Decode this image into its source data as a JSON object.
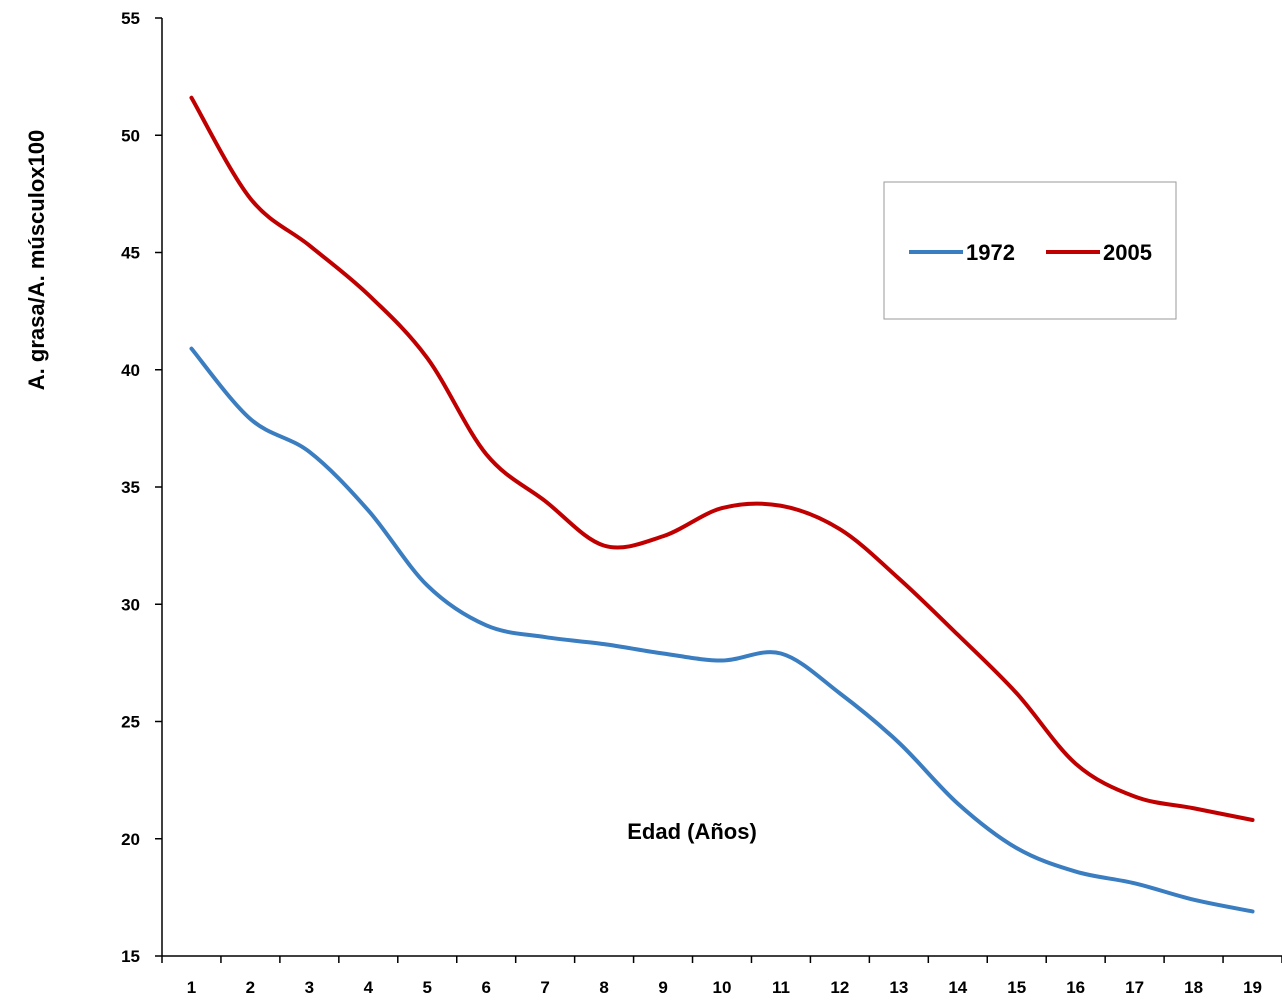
{
  "chart_data": {
    "type": "line",
    "title": "",
    "xlabel": "Edad (Años)",
    "ylabel": "A. grasa/A. músculox100",
    "categories": [
      "1",
      "2",
      "3",
      "4",
      "5",
      "6",
      "7",
      "8",
      "9",
      "10",
      "11",
      "12",
      "13",
      "14",
      "15",
      "16",
      "17",
      "18",
      "19"
    ],
    "ylim": [
      15,
      55
    ],
    "yticks": [
      15,
      20,
      25,
      30,
      35,
      40,
      45,
      50,
      55
    ],
    "grid": false,
    "legend_position": "top-right",
    "series": [
      {
        "name": "1972",
        "color": "#3a7dc0",
        "values": [
          40.9,
          37.9,
          36.5,
          34.0,
          30.8,
          29.1,
          28.6,
          28.3,
          27.9,
          27.6,
          27.9,
          26.2,
          24.1,
          21.5,
          19.6,
          18.6,
          18.1,
          17.4,
          16.9
        ]
      },
      {
        "name": "2005",
        "color": "#c00000",
        "values": [
          51.6,
          47.3,
          45.3,
          43.2,
          40.5,
          36.4,
          34.4,
          32.5,
          32.9,
          34.1,
          34.2,
          33.2,
          31.1,
          28.7,
          26.2,
          23.2,
          21.8,
          21.3,
          20.8
        ]
      }
    ]
  }
}
